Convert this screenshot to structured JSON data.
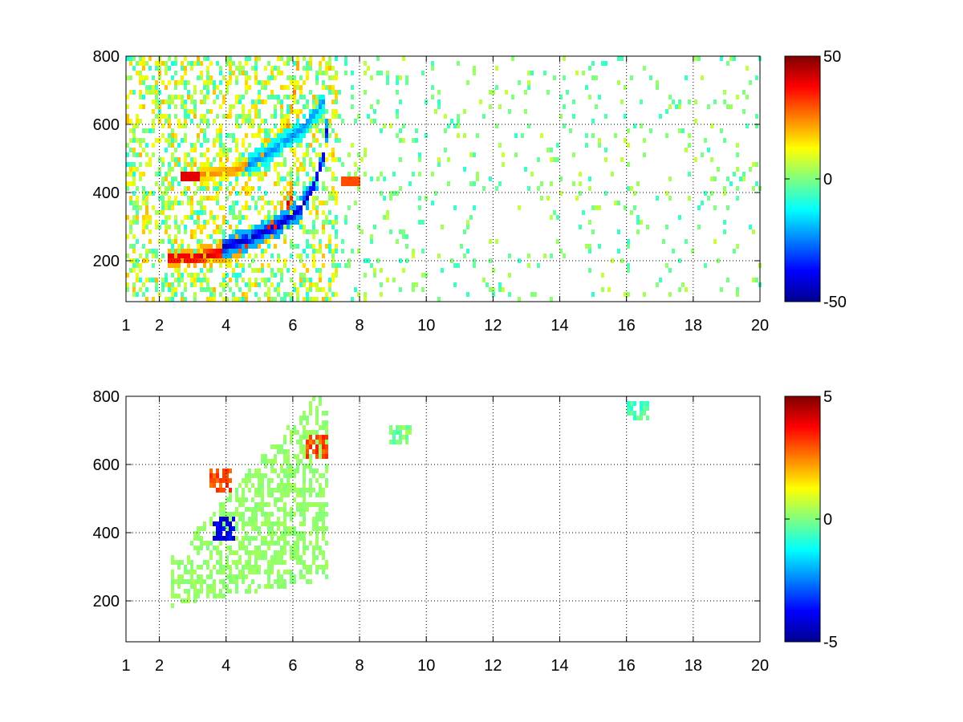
{
  "chart_data": [
    {
      "type": "heatmap",
      "title": "",
      "xlabel": "",
      "ylabel": "",
      "xlim": [
        1,
        20
      ],
      "ylim": [
        80,
        800
      ],
      "x_ticks": [
        1,
        2,
        4,
        6,
        8,
        10,
        12,
        14,
        16,
        18,
        20
      ],
      "x_tick_labels": [
        "1",
        "2",
        "4",
        "6",
        "8",
        "10",
        "12",
        "14",
        "16",
        "18",
        "20"
      ],
      "y_ticks": [
        200,
        400,
        600,
        800
      ],
      "y_tick_labels": [
        "200",
        "400",
        "600",
        "800"
      ],
      "grid": true,
      "colormap": "jet",
      "color_range": [
        -50,
        50
      ],
      "colorbar_ticks": [
        50,
        0,
        -50
      ],
      "colorbar_tick_labels": [
        "50",
        "0",
        "-50"
      ],
      "features": [
        {
          "name": "positive-ridge",
          "sign": "positive",
          "value": 45,
          "points": [
            [
              2.2,
              215
            ],
            [
              3.0,
              215
            ],
            [
              4.0,
              235
            ],
            [
              4.8,
              270
            ],
            [
              5.4,
              310
            ],
            [
              5.8,
              370
            ],
            [
              6.0,
              430
            ]
          ]
        },
        {
          "name": "negative-ridge",
          "sign": "negative",
          "value": -45,
          "points": [
            [
              3.8,
              245
            ],
            [
              4.6,
              270
            ],
            [
              5.5,
              310
            ],
            [
              6.2,
              360
            ],
            [
              6.6,
              430
            ],
            [
              6.9,
              520
            ],
            [
              7.0,
              620
            ]
          ]
        },
        {
          "name": "upper-positive-band",
          "sign": "positive",
          "value": 25,
          "points": [
            [
              3.2,
              460
            ],
            [
              4.2,
              470
            ],
            [
              5.2,
              520
            ],
            [
              5.8,
              600
            ],
            [
              6.0,
              700
            ],
            [
              6.1,
              780
            ]
          ]
        },
        {
          "name": "upper-negative-band",
          "sign": "negative",
          "value": -25,
          "points": [
            [
              4.5,
              480
            ],
            [
              5.5,
              540
            ],
            [
              6.3,
              600
            ],
            [
              6.9,
              680
            ]
          ]
        }
      ],
      "hotspots": [
        {
          "x": 2.9,
          "y": 450,
          "value": 40
        },
        {
          "x": 7.7,
          "y": 435,
          "value": 30
        }
      ]
    },
    {
      "type": "heatmap",
      "title": "",
      "xlabel": "",
      "ylabel": "",
      "xlim": [
        1,
        20
      ],
      "ylim": [
        80,
        800
      ],
      "x_ticks": [
        1,
        2,
        4,
        6,
        8,
        10,
        12,
        14,
        16,
        18,
        20
      ],
      "x_tick_labels": [
        "1",
        "2",
        "4",
        "6",
        "8",
        "10",
        "12",
        "14",
        "16",
        "18",
        "20"
      ],
      "y_ticks": [
        200,
        400,
        600,
        800
      ],
      "y_tick_labels": [
        "200",
        "400",
        "600",
        "800"
      ],
      "grid": true,
      "colormap": "jet",
      "color_range": [
        -5,
        5
      ],
      "colorbar_ticks": [
        5,
        0,
        -5
      ],
      "colorbar_tick_labels": [
        "5",
        "0",
        "-5"
      ],
      "regions": [
        {
          "name": "near-zero-fan",
          "value": 0.2,
          "x_range": [
            2.3,
            7.0
          ],
          "y_range": [
            150,
            800
          ]
        }
      ],
      "hotspots": [
        {
          "x": 3.9,
          "y": 420,
          "value": -4
        },
        {
          "x": 3.8,
          "y": 560,
          "value": 3
        },
        {
          "x": 6.7,
          "y": 660,
          "value": 3
        },
        {
          "x": 9.2,
          "y": 690,
          "value": 0
        },
        {
          "x": 16.3,
          "y": 760,
          "value": -0.5
        }
      ]
    }
  ]
}
